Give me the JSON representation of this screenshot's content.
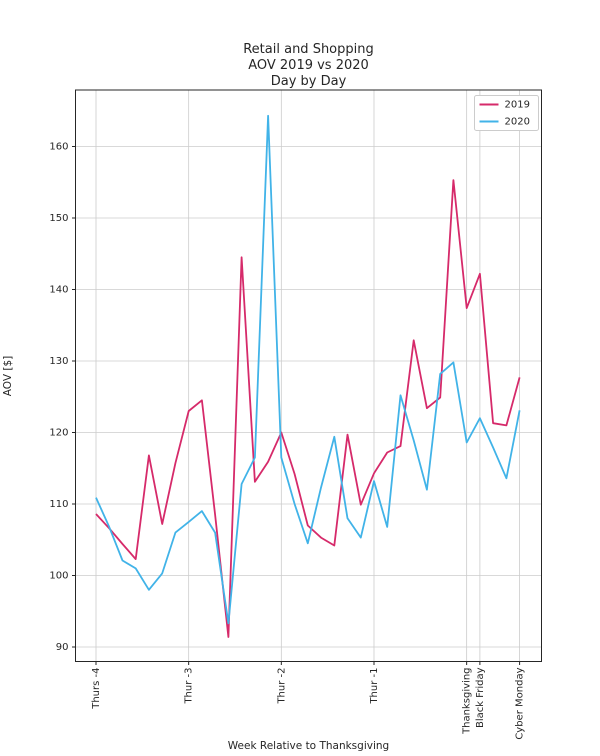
{
  "figure": {
    "title_line1": "Retail and Shopping",
    "title_line2": "AOV 2019 vs 2020",
    "title_line3": "Day by Day",
    "background_color": "#ffffff",
    "grid_color": "#cccccc",
    "spine_color": "#262626"
  },
  "chart_data": {
    "type": "line",
    "title": "Retail and Shopping\nAOV 2019 vs 2020\nDay by Day",
    "xlabel": "Week Relative to Thanksgiving",
    "ylabel": "AOV [$]",
    "grid": true,
    "legend_position": "upper right",
    "x_description": "one point per day, day index 0 = Thursday 4 weeks before Thanksgiving (33 daily points, ending on Cyber Monday)",
    "x_day_indices": [
      0,
      1,
      2,
      3,
      4,
      5,
      6,
      7,
      8,
      9,
      10,
      11,
      12,
      13,
      14,
      15,
      16,
      17,
      18,
      19,
      20,
      21,
      22,
      23,
      24,
      25,
      26,
      27,
      28,
      29,
      30,
      31,
      32
    ],
    "xticks": [
      {
        "day": 0,
        "label": "Thurs -4"
      },
      {
        "day": 7,
        "label": "Thur -3"
      },
      {
        "day": 14,
        "label": "Thur -2"
      },
      {
        "day": 21,
        "label": "Thur -1"
      },
      {
        "day": 28,
        "label": "Thanksgiving"
      },
      {
        "day": 29,
        "label": "Black Friday"
      },
      {
        "day": 32,
        "label": "Cyber Monday"
      }
    ],
    "yticks": [
      90,
      100,
      110,
      120,
      130,
      140,
      150,
      160
    ],
    "ylim": [
      88.0,
      167.9
    ],
    "xlim_days": [
      -1.6,
      33.6
    ],
    "series": [
      {
        "name": "2019",
        "color": "#d62a6a",
        "values": [
          108.6,
          106.6,
          104.4,
          102.3,
          116.8,
          107.2,
          115.7,
          123.0,
          124.5,
          108.5,
          91.4,
          144.5,
          113.1,
          115.9,
          120.0,
          114.2,
          107.0,
          105.3,
          104.2,
          119.7,
          109.9,
          114.3,
          117.2,
          118.1,
          132.9,
          123.4,
          124.9,
          155.3,
          137.4,
          142.2,
          121.3,
          121.0,
          127.7
        ]
      },
      {
        "name": "2020",
        "color": "#41b3e8",
        "values": [
          110.9,
          106.8,
          102.1,
          101.0,
          98.0,
          100.3,
          106.0,
          107.5,
          109.0,
          106.0,
          93.3,
          112.8,
          116.5,
          164.3,
          116.5,
          110.0,
          104.5,
          112.3,
          119.4,
          108.0,
          105.3,
          113.2,
          106.8,
          125.2,
          118.9,
          112.0,
          128.2,
          129.8,
          118.6,
          122.0,
          117.9,
          113.6,
          123.1
        ]
      }
    ]
  }
}
